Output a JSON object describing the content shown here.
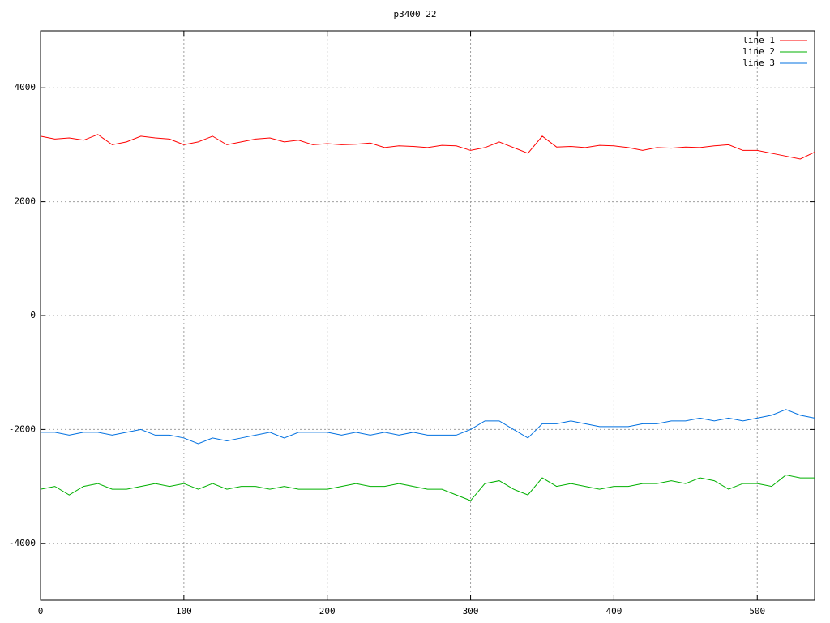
{
  "chart_data": {
    "type": "line",
    "title": "p3400_22",
    "x": [
      0,
      10,
      20,
      30,
      40,
      50,
      60,
      70,
      80,
      90,
      100,
      110,
      120,
      130,
      140,
      150,
      160,
      170,
      180,
      190,
      200,
      210,
      220,
      230,
      240,
      250,
      260,
      270,
      280,
      290,
      300,
      310,
      320,
      330,
      340,
      350,
      360,
      370,
      380,
      390,
      400,
      410,
      420,
      430,
      440,
      450,
      460,
      470,
      480,
      490,
      500,
      510,
      520,
      530,
      540
    ],
    "series": [
      {
        "name": "line 1",
        "color": "#ff0000",
        "values": [
          3150,
          3100,
          3120,
          3080,
          3180,
          3000,
          3050,
          3150,
          3120,
          3100,
          3000,
          3050,
          3150,
          3000,
          3050,
          3100,
          3120,
          3050,
          3080,
          3000,
          3020,
          3000,
          3010,
          3030,
          2950,
          2980,
          2970,
          2950,
          2990,
          2980,
          2900,
          2950,
          3050,
          2950,
          2850,
          3150,
          2960,
          2970,
          2950,
          2990,
          2980,
          2950,
          2900,
          2950,
          2940,
          2960,
          2950,
          2980,
          3000,
          2900,
          2900,
          2850,
          2800,
          2750,
          2870
        ]
      },
      {
        "name": "line 2",
        "color": "#00b000",
        "values": [
          -3050,
          -3000,
          -3150,
          -3000,
          -2950,
          -3050,
          -3050,
          -3000,
          -2950,
          -3000,
          -2950,
          -3050,
          -2950,
          -3050,
          -3000,
          -3000,
          -3050,
          -3000,
          -3050,
          -3050,
          -3050,
          -3000,
          -2950,
          -3000,
          -3000,
          -2950,
          -3000,
          -3050,
          -3050,
          -3150,
          -3250,
          -2950,
          -2900,
          -3050,
          -3150,
          -2850,
          -3000,
          -2950,
          -3000,
          -3050,
          -3000,
          -3000,
          -2950,
          -2950,
          -2900,
          -2950,
          -2850,
          -2900,
          -3050,
          -2950,
          -2950,
          -3000,
          -2800,
          -2850,
          -2850
        ]
      },
      {
        "name": "line 3",
        "color": "#0070e0",
        "values": [
          -2050,
          -2050,
          -2100,
          -2050,
          -2050,
          -2100,
          -2050,
          -2000,
          -2100,
          -2100,
          -2150,
          -2250,
          -2150,
          -2200,
          -2150,
          -2100,
          -2050,
          -2150,
          -2050,
          -2050,
          -2050,
          -2100,
          -2050,
          -2100,
          -2050,
          -2100,
          -2050,
          -2100,
          -2100,
          -2100,
          -2000,
          -1850,
          -1850,
          -2000,
          -2150,
          -1900,
          -1900,
          -1850,
          -1900,
          -1950,
          -1950,
          -1950,
          -1900,
          -1900,
          -1850,
          -1850,
          -1800,
          -1850,
          -1800,
          -1850,
          -1800,
          -1750,
          -1650,
          -1750,
          -1800
        ]
      }
    ],
    "xlim": [
      0,
      540
    ],
    "xticks": [
      0,
      100,
      200,
      300,
      400,
      500
    ],
    "ylim": [
      -5000,
      5000
    ],
    "yticks": [
      -4000,
      -2000,
      0,
      2000,
      4000
    ],
    "grid": true,
    "legend": "top-right"
  }
}
